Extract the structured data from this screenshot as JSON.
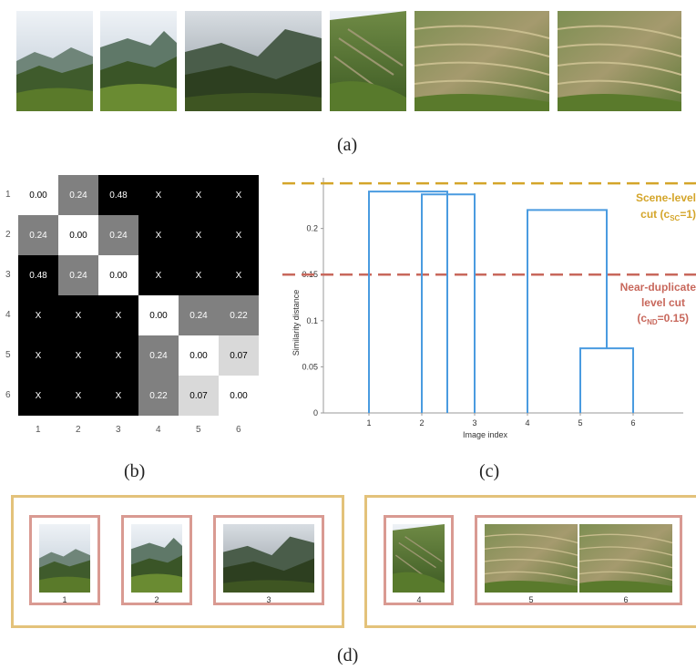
{
  "captions": {
    "a": "(a)",
    "b": "(b)",
    "c": "(c)",
    "d": "(d)"
  },
  "matrix": {
    "row_labels": [
      "1",
      "2",
      "3",
      "4",
      "5",
      "6"
    ],
    "col_labels": [
      "1",
      "2",
      "3",
      "4",
      "5",
      "6"
    ],
    "cells": [
      [
        "0.00",
        "0.24",
        "0.48",
        "X",
        "X",
        "X"
      ],
      [
        "0.24",
        "0.00",
        "0.24",
        "X",
        "X",
        "X"
      ],
      [
        "0.48",
        "0.24",
        "0.00",
        "X",
        "X",
        "X"
      ],
      [
        "X",
        "X",
        "X",
        "0.00",
        "0.24",
        "0.22"
      ],
      [
        "X",
        "X",
        "X",
        "0.24",
        "0.00",
        "0.07"
      ],
      [
        "X",
        "X",
        "X",
        "0.22",
        "0.07",
        "0.00"
      ]
    ]
  },
  "dendrogram": {
    "ylabel": "Similarity distance",
    "xlabel": "Image index",
    "yticks": [
      "0",
      "0.05",
      "0.1",
      "0.15",
      "0.2"
    ],
    "xticks": [
      "1",
      "2",
      "3",
      "4",
      "5",
      "6"
    ],
    "scene_cut": {
      "line1": "Scene-level",
      "line2_pre": "cut (c",
      "line2_sub": "SC",
      "line2_post": "=1)",
      "color": "#d4a52a"
    },
    "nd_cut": {
      "line1": "Near-duplicate",
      "line2": "level cut",
      "line3_pre": "(c",
      "line3_sub": "ND",
      "line3_post": "=0.15)",
      "color": "#c8685c",
      "value": 0.15
    },
    "line_color": "#4a9be0",
    "links": [
      {
        "left": 1,
        "right": 2,
        "height": 0.24
      },
      {
        "left": 2,
        "right": 3,
        "height": 0.24
      },
      {
        "left": 5,
        "right": 6,
        "height": 0.07
      },
      {
        "left": 4,
        "right": 5.5,
        "height": 0.22
      }
    ]
  },
  "groups": {
    "thumb_labels": [
      "1",
      "2",
      "3",
      "4",
      "5",
      "6"
    ]
  },
  "colors": {
    "scene_box": "#e3c27a",
    "nd_box": "#d99a92"
  }
}
